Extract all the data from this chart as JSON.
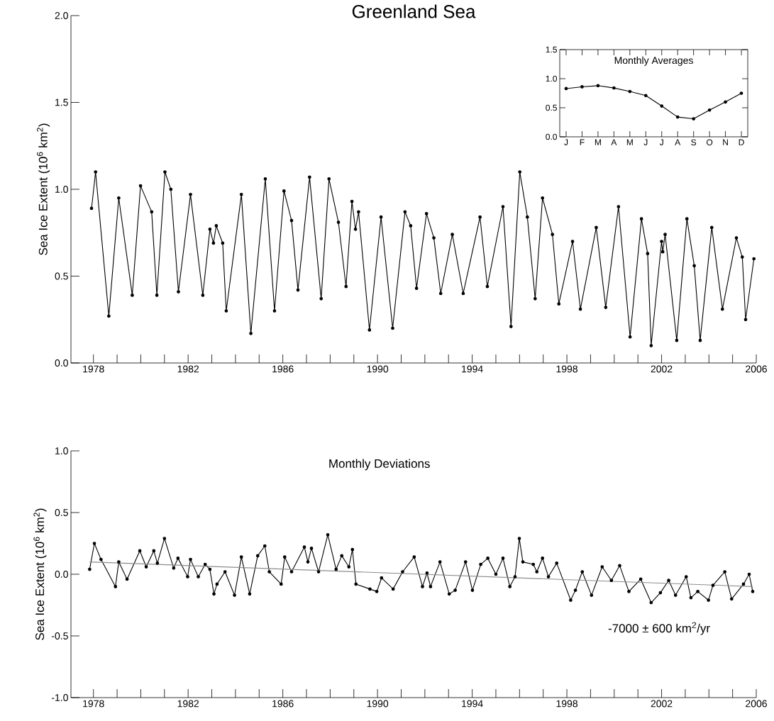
{
  "chart_data": [
    {
      "type": "line",
      "title": "Greenland Sea",
      "ylabel": "Sea Ice Extent (10$^{6}$ km$^{2}$)",
      "color": "#000000",
      "marker": "circle",
      "x": [
        1977.92,
        1978.09,
        1978.65,
        1979.07,
        1979.64,
        1979.99,
        1980.46,
        1980.68,
        1981.02,
        1981.27,
        1981.59,
        1982.1,
        1982.62,
        1982.92,
        1983.07,
        1983.19,
        1983.46,
        1983.61,
        1984.25,
        1984.65,
        1985.26,
        1985.65,
        1986.05,
        1986.37,
        1986.64,
        1987.13,
        1987.62,
        1987.95,
        1988.35,
        1988.67,
        1988.92,
        1989.07,
        1989.2,
        1989.66,
        1990.15,
        1990.64,
        1991.16,
        1991.4,
        1991.65,
        1992.07,
        1992.38,
        1992.67,
        1993.16,
        1993.62,
        1994.33,
        1994.64,
        1995.3,
        1995.64,
        1996.01,
        1996.33,
        1996.66,
        1996.97,
        1997.39,
        1997.66,
        1998.24,
        1998.57,
        1999.24,
        1999.64,
        2000.18,
        2000.67,
        2001.15,
        2001.41,
        2001.56,
        2002.0,
        2002.05,
        2002.15,
        2002.64,
        2003.07,
        2003.38,
        2003.63,
        2004.12,
        2004.57,
        2005.16,
        2005.41,
        2005.55,
        2005.9
      ],
      "values": [
        0.89,
        1.1,
        0.27,
        0.95,
        0.39,
        1.02,
        0.87,
        0.39,
        1.1,
        1.0,
        0.41,
        0.97,
        0.39,
        0.77,
        0.69,
        0.79,
        0.69,
        0.3,
        0.97,
        0.17,
        1.06,
        0.3,
        0.99,
        0.82,
        0.42,
        1.07,
        0.37,
        1.06,
        0.81,
        0.44,
        0.93,
        0.77,
        0.87,
        0.19,
        0.84,
        0.2,
        0.87,
        0.79,
        0.43,
        0.86,
        0.72,
        0.4,
        0.74,
        0.4,
        0.84,
        0.44,
        0.9,
        0.21,
        1.1,
        0.84,
        0.37,
        0.95,
        0.74,
        0.34,
        0.7,
        0.31,
        0.78,
        0.32,
        0.9,
        0.15,
        0.83,
        0.63,
        0.1,
        0.7,
        0.64,
        0.74,
        0.13,
        0.83,
        0.56,
        0.13,
        0.78,
        0.31,
        0.72,
        0.61,
        0.25,
        0.6
      ],
      "xlim": [
        1977.05,
        2006.0
      ],
      "ylim": [
        0,
        2.0
      ],
      "xticks": [
        1978,
        {
          "value": 1979,
          "label": null
        },
        {
          "value": 1980,
          "label": null
        },
        {
          "value": 1981,
          "label": null
        },
        1982,
        {
          "value": 1983,
          "label": null
        },
        {
          "value": 1984,
          "label": null
        },
        {
          "value": 1985,
          "label": null
        },
        1986,
        {
          "value": 1987,
          "label": null
        },
        {
          "value": 1988,
          "label": null
        },
        {
          "value": 1989,
          "label": null
        },
        1990,
        {
          "value": 1991,
          "label": null
        },
        {
          "value": 1992,
          "label": null
        },
        {
          "value": 1993,
          "label": null
        },
        1994,
        {
          "value": 1995,
          "label": null
        },
        {
          "value": 1996,
          "label": null
        },
        {
          "value": 1997,
          "label": null
        },
        1998,
        {
          "value": 1999,
          "label": null
        },
        {
          "value": 2000,
          "label": null
        },
        {
          "value": 2001,
          "label": null
        },
        2002,
        {
          "value": 2003,
          "label": null
        },
        {
          "value": 2004,
          "label": null
        },
        {
          "value": 2005,
          "label": null
        },
        2006
      ],
      "yticks": [
        {
          "value": 0,
          "label": "0.0"
        },
        {
          "value": 0.5,
          "label": "0.5"
        },
        {
          "value": 1.0,
          "label": "1.0"
        },
        {
          "value": 1.5,
          "label": "1.5"
        },
        {
          "value": 2.0,
          "label": "2.0"
        }
      ]
    },
    {
      "type": "line",
      "title": "Monthly Averages",
      "color": "#000000",
      "marker": "circle",
      "categories": [
        "J",
        "F",
        "M",
        "A",
        "M",
        "J",
        "J",
        "A",
        "S",
        "O",
        "N",
        "D"
      ],
      "values": [
        0.83,
        0.86,
        0.88,
        0.84,
        0.78,
        0.71,
        0.53,
        0.34,
        0.31,
        0.46,
        0.6,
        0.75
      ],
      "ylim": [
        0,
        1.5
      ],
      "yticks": [
        {
          "value": 0,
          "label": "0.0"
        },
        {
          "value": 0.5,
          "label": "0.5"
        },
        {
          "value": 1.0,
          "label": "1.0"
        },
        {
          "value": 1.5,
          "label": "1.5"
        }
      ]
    },
    {
      "type": "line",
      "title": "Monthly Deviations",
      "ylabel": "Sea Ice Extent (10$^{6}$ km$^{2}$)",
      "marker": "circle",
      "series": [
        {
          "color": "#000000",
          "x": [
            1977.84,
            1978.04,
            1978.32,
            1978.93,
            1979.07,
            1979.42,
            1979.96,
            1980.23,
            1980.55,
            1980.7,
            1981.0,
            1981.39,
            1981.57,
            1981.98,
            1982.1,
            1982.43,
            1982.72,
            1982.92,
            1983.09,
            1983.22,
            1983.56,
            1983.96,
            1984.25,
            1984.6,
            1984.94,
            1985.24,
            1985.43,
            1985.93,
            1986.08,
            1986.37,
            1986.91,
            1987.06,
            1987.21,
            1987.51,
            1987.9,
            1988.25,
            1988.49,
            1988.79,
            1988.94,
            1989.09,
            1989.68,
            1989.97,
            1990.17,
            1990.66,
            1991.06,
            1991.55,
            1991.9,
            1992.09,
            1992.24,
            1992.64,
            1993.03,
            1993.28,
            1993.72,
            1994.01,
            1994.36,
            1994.66,
            1995.0,
            1995.3,
            1995.59,
            1995.81,
            1995.99,
            1996.14,
            1996.58,
            1996.73,
            1996.97,
            1997.22,
            1997.57,
            1998.16,
            1998.36,
            1998.65,
            1999.04,
            1999.49,
            1999.88,
            2000.23,
            2000.62,
            2001.12,
            2001.56,
            2001.95,
            2002.3,
            2002.59,
            2003.04,
            2003.24,
            2003.53,
            2003.98,
            2004.17,
            2004.67,
            2004.96,
            2005.46,
            2005.7,
            2005.85
          ],
          "values": [
            0.04,
            0.25,
            0.12,
            -0.1,
            0.1,
            -0.04,
            0.19,
            0.06,
            0.19,
            0.09,
            0.29,
            0.05,
            0.13,
            -0.02,
            0.12,
            -0.02,
            0.08,
            0.04,
            -0.16,
            -0.08,
            0.02,
            -0.17,
            0.14,
            -0.16,
            0.15,
            0.23,
            0.02,
            -0.08,
            0.14,
            0.02,
            0.22,
            0.1,
            0.21,
            0.02,
            0.32,
            0.04,
            0.15,
            0.06,
            0.2,
            -0.08,
            -0.12,
            -0.14,
            -0.03,
            -0.12,
            0.02,
            0.14,
            -0.1,
            0.01,
            -0.1,
            0.1,
            -0.16,
            -0.13,
            0.1,
            -0.13,
            0.08,
            0.13,
            0.0,
            0.13,
            -0.1,
            -0.02,
            0.29,
            0.1,
            0.08,
            0.02,
            0.13,
            -0.02,
            0.09,
            -0.21,
            -0.13,
            0.02,
            -0.17,
            0.06,
            -0.05,
            0.07,
            -0.14,
            -0.04,
            -0.23,
            -0.15,
            -0.05,
            -0.17,
            -0.02,
            -0.19,
            -0.14,
            -0.21,
            -0.09,
            0.02,
            -0.2,
            -0.08,
            0.0,
            -0.14
          ]
        },
        {
          "type": "line",
          "marker": "none",
          "color": "#8c8c8c",
          "x": [
            1977.84,
            2005.85
          ],
          "values": [
            0.1,
            -0.1
          ]
        }
      ],
      "annotations": [
        "-7000 ± 600 km$^{2}$/yr"
      ],
      "xlim": [
        1977.05,
        2006.0
      ],
      "ylim": [
        -1.0,
        1.0
      ],
      "xticks": [
        1978,
        {
          "value": 1979,
          "label": null
        },
        {
          "value": 1980,
          "label": null
        },
        {
          "value": 1981,
          "label": null
        },
        1982,
        {
          "value": 1983,
          "label": null
        },
        {
          "value": 1984,
          "label": null
        },
        {
          "value": 1985,
          "label": null
        },
        1986,
        {
          "value": 1987,
          "label": null
        },
        {
          "value": 1988,
          "label": null
        },
        {
          "value": 1989,
          "label": null
        },
        1990,
        {
          "value": 1991,
          "label": null
        },
        {
          "value": 1992,
          "label": null
        },
        {
          "value": 1993,
          "label": null
        },
        1994,
        {
          "value": 1995,
          "label": null
        },
        {
          "value": 1996,
          "label": null
        },
        {
          "value": 1997,
          "label": null
        },
        1998,
        {
          "value": 1999,
          "label": null
        },
        {
          "value": 2000,
          "label": null
        },
        {
          "value": 2001,
          "label": null
        },
        2002,
        {
          "value": 2003,
          "label": null
        },
        {
          "value": 2004,
          "label": null
        },
        {
          "value": 2005,
          "label": null
        },
        2006
      ],
      "yticks": [
        {
          "value": -1.0,
          "label": "-1.0"
        },
        {
          "value": -0.5,
          "label": "-0.5"
        },
        {
          "value": 0,
          "label": "0.0"
        },
        {
          "value": 0.5,
          "label": "0.5"
        },
        {
          "value": 1.0,
          "label": "1.0"
        }
      ]
    }
  ]
}
